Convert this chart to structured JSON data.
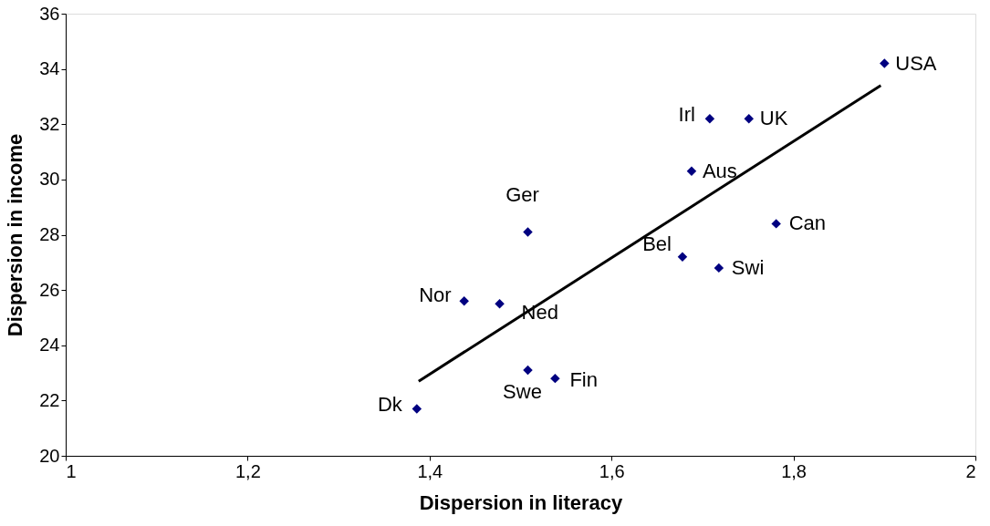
{
  "chart_data": {
    "type": "scatter",
    "xlabel": "Dispersion in literacy",
    "ylabel": "Dispersion in income",
    "x": [
      1.9,
      1.708,
      1.751,
      1.688,
      1.781,
      1.508,
      1.678,
      1.718,
      1.438,
      1.477,
      1.508,
      1.538,
      1.386
    ],
    "series": [
      {
        "type": "scatter",
        "color": "#000080",
        "marker": "diamond",
        "values": [
          34.2,
          32.2,
          32.2,
          30.3,
          28.4,
          28.1,
          27.2,
          26.8,
          25.6,
          25.5,
          23.1,
          22.8,
          21.7
        ]
      },
      {
        "type": "line",
        "color": "#000000",
        "x": [
          1.388,
          1.896
        ],
        "values": [
          22.7,
          33.4
        ]
      }
    ],
    "annotations": [
      {
        "text": "USA",
        "x": 1.9,
        "y": 34.2
      },
      {
        "text": "Irl",
        "x": 1.708,
        "y": 32.2
      },
      {
        "text": "UK",
        "x": 1.751,
        "y": 32.2
      },
      {
        "text": "Aus",
        "x": 1.688,
        "y": 30.3
      },
      {
        "text": "Can",
        "x": 1.781,
        "y": 28.4
      },
      {
        "text": "Ger",
        "x": 1.508,
        "y": 28.1
      },
      {
        "text": "Bel",
        "x": 1.678,
        "y": 27.2
      },
      {
        "text": "Swi",
        "x": 1.718,
        "y": 26.8
      },
      {
        "text": "Nor",
        "x": 1.438,
        "y": 25.6
      },
      {
        "text": "Ned",
        "x": 1.477,
        "y": 25.5
      },
      {
        "text": "Swe",
        "x": 1.508,
        "y": 23.1
      },
      {
        "text": "Fin",
        "x": 1.538,
        "y": 22.8
      },
      {
        "text": "Dk",
        "x": 1.386,
        "y": 21.7
      }
    ],
    "xlim": [
      1,
      2
    ],
    "xticks": [
      1,
      {
        "value": 1.2,
        "label": "1,2"
      },
      {
        "value": 1.4,
        "label": "1,4"
      },
      {
        "value": 1.6,
        "label": "1,6"
      },
      {
        "value": 1.8,
        "label": "1,8"
      },
      2
    ],
    "ylim": [
      20,
      36
    ],
    "yticks": [
      20,
      22,
      24,
      26,
      28,
      30,
      32,
      34,
      36
    ],
    "grid": false
  }
}
